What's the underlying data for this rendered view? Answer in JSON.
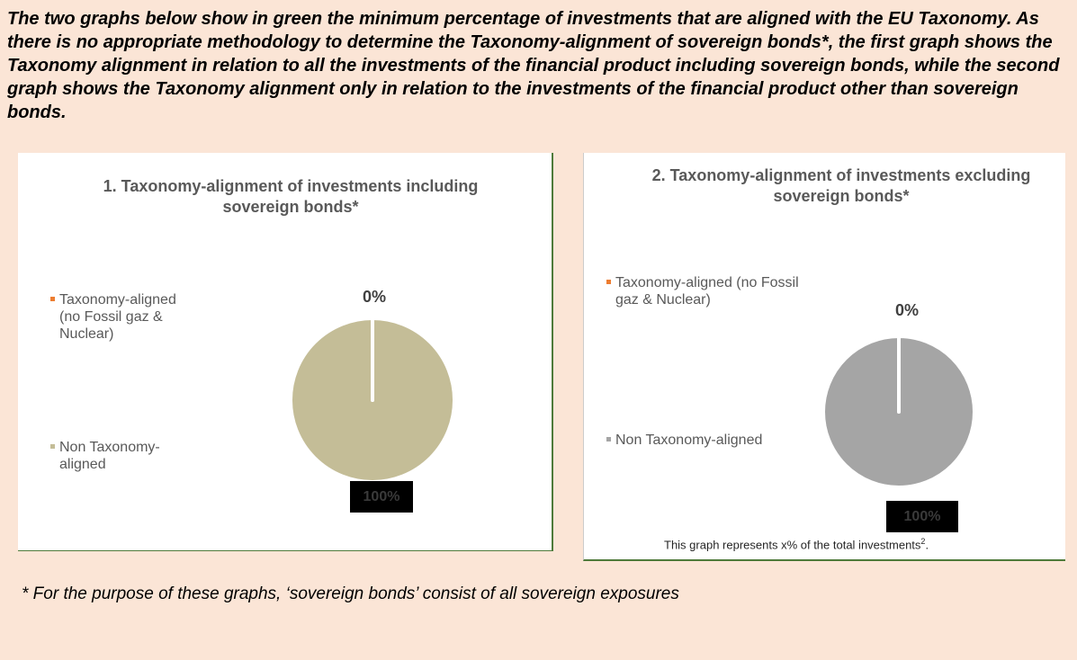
{
  "intro": "The two graphs below show in green the minimum percentage of investments that are aligned with the EU Taxonomy. As there is no appropriate methodology to determine the Taxonomy-alignment of sovereign bonds*, the first graph shows the Taxonomy alignment in relation to all the investments of the financial product including sovereign bonds, while the second graph shows the Taxonomy alignment only in relation to the investments of the financial product other than sovereign bonds.",
  "chart_data": [
    {
      "type": "pie",
      "title": "1. Taxonomy-alignment of investments including sovereign bonds*",
      "categories": [
        "Taxonomy-aligned (no Fossil gaz & Nuclear)",
        "Non Taxonomy-aligned"
      ],
      "values": [
        0,
        100
      ],
      "value_labels": [
        "0%",
        "100%"
      ],
      "colors": [
        "#ed7d31",
        "#c4bd97"
      ]
    },
    {
      "type": "pie",
      "title": "2. Taxonomy-alignment of investments excluding sovereign bonds*",
      "categories": [
        "Taxonomy-aligned (no Fossil gaz & Nuclear)",
        "Non Taxonomy-aligned"
      ],
      "values": [
        0,
        100
      ],
      "value_labels": [
        "0%",
        "100%"
      ],
      "colors": [
        "#ed7d31",
        "#a5a5a5"
      ],
      "note": [
        "This graph represents x% of the total investments",
        "2",
        "."
      ]
    }
  ],
  "footnote": "* For the purpose of these graphs, ‘sovereign bonds’ consist of all sovereign exposures"
}
